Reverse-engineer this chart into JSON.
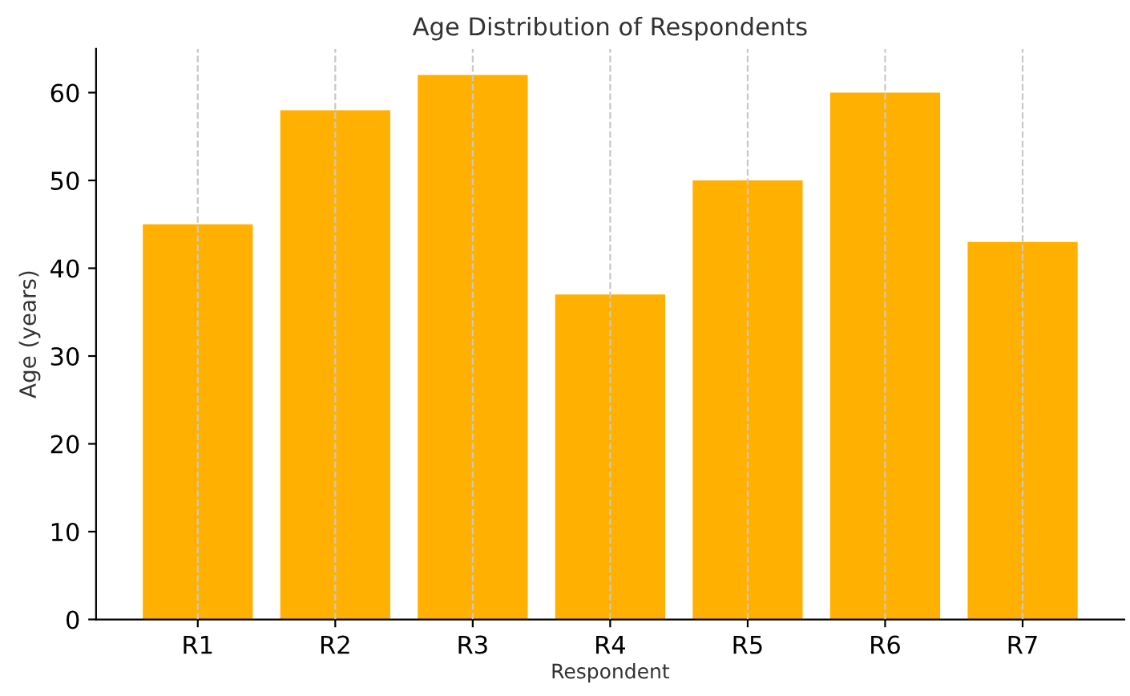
{
  "chart_data": {
    "type": "bar",
    "title": "Age Distribution of Respondents",
    "xlabel": "Respondent",
    "ylabel": "Age (years)",
    "categories": [
      "R1",
      "R2",
      "R3",
      "R4",
      "R5",
      "R6",
      "R7"
    ],
    "values": [
      45,
      58,
      62,
      37,
      50,
      60,
      43
    ],
    "color": "#ffb000",
    "ylim": [
      0,
      65
    ],
    "yticks": [
      0,
      10,
      20,
      30,
      40,
      50,
      60
    ],
    "grid": "x"
  }
}
